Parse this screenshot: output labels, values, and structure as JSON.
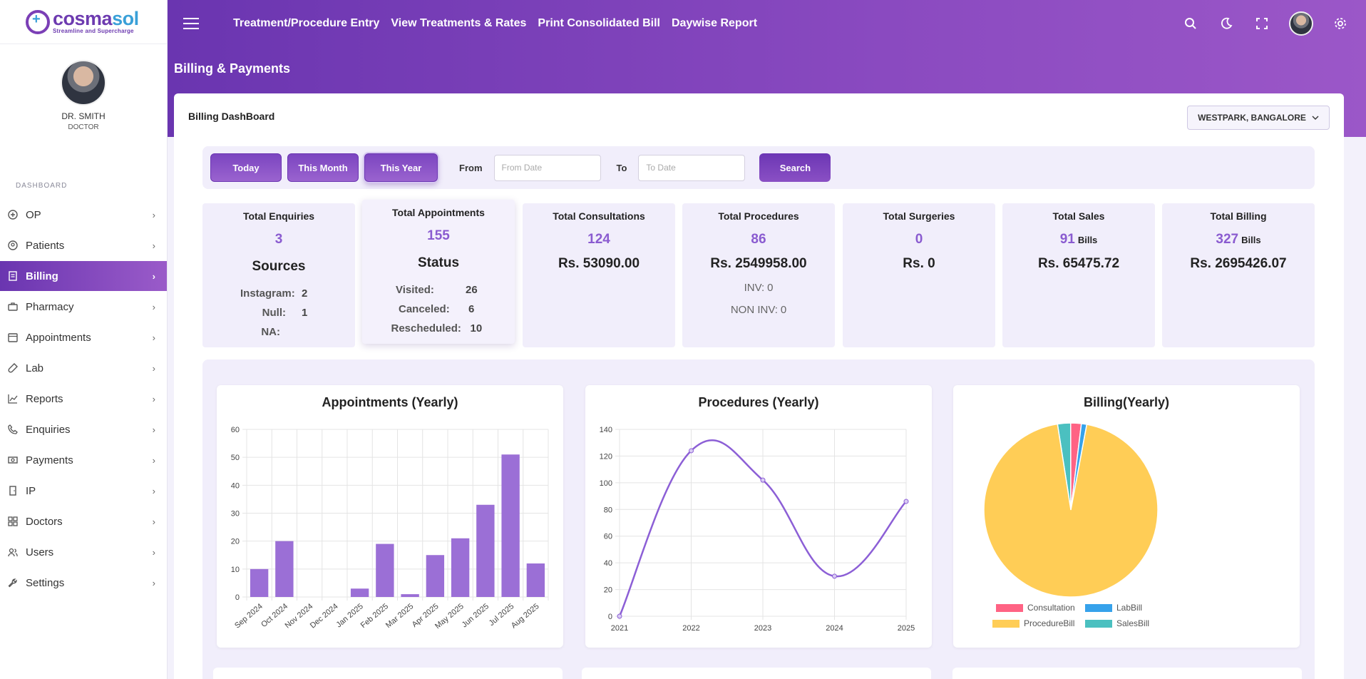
{
  "brand": {
    "name_main": "cosma",
    "name_accent": "sol",
    "tagline": "Streamline and Supercharge"
  },
  "profile": {
    "name": "DR. SMITH",
    "role": "DOCTOR"
  },
  "sidebar": {
    "section": "DASHBOARD",
    "items": [
      {
        "label": "OP",
        "icon": "plus-circle-icon"
      },
      {
        "label": "Patients",
        "icon": "user-circle-icon"
      },
      {
        "label": "Billing",
        "icon": "receipt-icon"
      },
      {
        "label": "Pharmacy",
        "icon": "briefcase-icon"
      },
      {
        "label": "Appointments",
        "icon": "calendar-icon"
      },
      {
        "label": "Lab",
        "icon": "test-tube-icon"
      },
      {
        "label": "Reports",
        "icon": "line-chart-icon"
      },
      {
        "label": "Enquiries",
        "icon": "phone-icon"
      },
      {
        "label": "Payments",
        "icon": "money-icon"
      },
      {
        "label": "IP",
        "icon": "door-icon"
      },
      {
        "label": "Doctors",
        "icon": "grid-icon"
      },
      {
        "label": "Users",
        "icon": "users-icon"
      },
      {
        "label": "Settings",
        "icon": "wrench-icon"
      }
    ]
  },
  "topnav": {
    "links": [
      "Treatment/Procedure Entry",
      "View Treatments & Rates",
      "Print Consolidated Bill",
      "Daywise Report"
    ]
  },
  "page": {
    "title": "Billing & Payments",
    "card_title": "Billing DashBoard",
    "branch": "WESTPARK, BANGALORE"
  },
  "filters": {
    "today": "Today",
    "this_month": "This Month",
    "this_year": "This Year",
    "from_label": "From",
    "from_placeholder": "From Date",
    "to_label": "To",
    "to_placeholder": "To Date",
    "search": "Search"
  },
  "stats": {
    "enquiries": {
      "title": "Total Enquiries",
      "value": "3",
      "sub": "Sources",
      "rows": [
        {
          "k": "Instagram:",
          "v": "2"
        },
        {
          "k": "Null:",
          "v": "1"
        },
        {
          "k": "NA:",
          "v": ""
        }
      ]
    },
    "appointments": {
      "title": "Total Appointments",
      "value": "155",
      "sub": "Status",
      "rows": [
        {
          "k": "Visited:",
          "v": "26"
        },
        {
          "k": "Canceled:",
          "v": "6"
        },
        {
          "k": "Rescheduled:",
          "v": "10"
        }
      ]
    },
    "consultations": {
      "title": "Total Consultations",
      "value": "124",
      "amount": "Rs. 53090.00"
    },
    "procedures": {
      "title": "Total Procedures",
      "value": "86",
      "amount": "Rs. 2549958.00",
      "inv_label": "INV:",
      "inv": "0",
      "noninv_label": "NON INV:",
      "noninv": "0"
    },
    "surgeries": {
      "title": "Total Surgeries",
      "value": "0",
      "amount": "Rs. 0"
    },
    "sales": {
      "title": "Total Sales",
      "value": "91",
      "unit": "Bills",
      "amount": "Rs. 65475.72"
    },
    "billing": {
      "title": "Total Billing",
      "value": "327",
      "unit": "Bills",
      "amount": "Rs. 2695426.07"
    }
  },
  "colors": {
    "accent": "#8a5bd0",
    "bar": "#9b6fd6",
    "line": "#8c5fd6",
    "pie": [
      "#ff6384",
      "#36a2eb",
      "#ffcd56",
      "#4bc0c0"
    ]
  },
  "chart_data": [
    {
      "type": "bar",
      "title": "Appointments (Yearly)",
      "categories": [
        "Sep 2024",
        "Oct 2024",
        "Nov 2024",
        "Dec 2024",
        "Jan 2025",
        "Feb 2025",
        "Mar 2025",
        "Apr 2025",
        "May 2025",
        "Jun 2025",
        "Jul 2025",
        "Aug 2025"
      ],
      "values": [
        10,
        20,
        0,
        0,
        3,
        19,
        1,
        15,
        21,
        33,
        51,
        12
      ],
      "ylim": [
        0,
        60
      ],
      "yticks": [
        0,
        10,
        20,
        30,
        40,
        50,
        60
      ]
    },
    {
      "type": "line",
      "title": "Procedures (Yearly)",
      "x": [
        "2021",
        "2022",
        "2023",
        "2024",
        "2025"
      ],
      "values": [
        0,
        124,
        102,
        30,
        86
      ],
      "ylim": [
        0,
        140
      ],
      "yticks": [
        0,
        20,
        40,
        60,
        80,
        100,
        120,
        140
      ]
    },
    {
      "type": "pie",
      "title": "Billing(Yearly)",
      "labels": [
        "Consultation",
        "LabBill",
        "ProcedureBill",
        "SalesBill"
      ],
      "values": [
        53090.0,
        27000.0,
        2549958.0,
        65475.72
      ]
    }
  ]
}
